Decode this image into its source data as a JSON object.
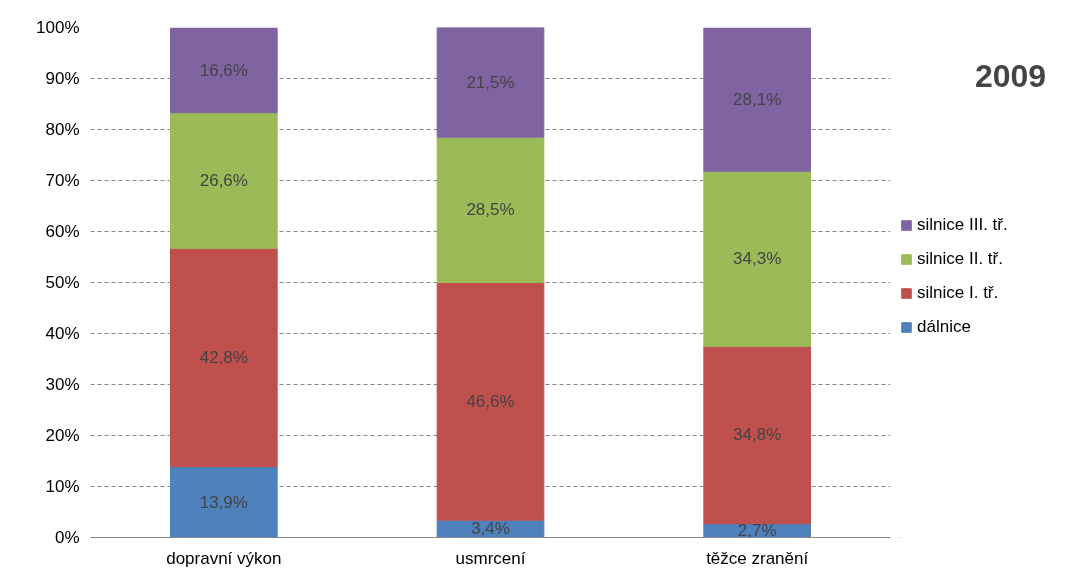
{
  "chart_data": {
    "type": "bar",
    "stacked": true,
    "title": "2009",
    "categories": [
      "dopravní výkon",
      "usmrcení",
      "těžce zranění"
    ],
    "series": [
      {
        "name": "dálnice",
        "color": "#4f81bd",
        "values": [
          13.9,
          3.4,
          2.7
        ],
        "value_labels": [
          "13,9%",
          "3,4%",
          "2,7%"
        ]
      },
      {
        "name": "silnice I. tř.",
        "color": "#c0504d",
        "values": [
          42.8,
          46.6,
          34.8
        ],
        "value_labels": [
          "42,8%",
          "46,6%",
          "34,8%"
        ]
      },
      {
        "name": "silnice II. tř.",
        "color": "#9bbb59",
        "values": [
          26.6,
          28.5,
          34.3
        ],
        "value_labels": [
          "26,6%",
          "28,5%",
          "34,3%"
        ]
      },
      {
        "name": "silnice III. tř.",
        "color": "#8064a2",
        "values": [
          16.6,
          21.5,
          28.1
        ],
        "value_labels": [
          "16,6%",
          "21,5%",
          "28,1%"
        ]
      }
    ],
    "ylim": [
      0,
      100
    ],
    "yticks": [
      {
        "value": 0,
        "label": "0%"
      },
      {
        "value": 10,
        "label": "10%"
      },
      {
        "value": 20,
        "label": "20%"
      },
      {
        "value": 30,
        "label": "30%"
      },
      {
        "value": 40,
        "label": "40%"
      },
      {
        "value": 50,
        "label": "50%"
      },
      {
        "value": 60,
        "label": "60%"
      },
      {
        "value": 70,
        "label": "70%"
      },
      {
        "value": 80,
        "label": "80%"
      },
      {
        "value": 90,
        "label": "90%"
      },
      {
        "value": 100,
        "label": "100%"
      }
    ],
    "grid": "y",
    "legend": "right"
  }
}
